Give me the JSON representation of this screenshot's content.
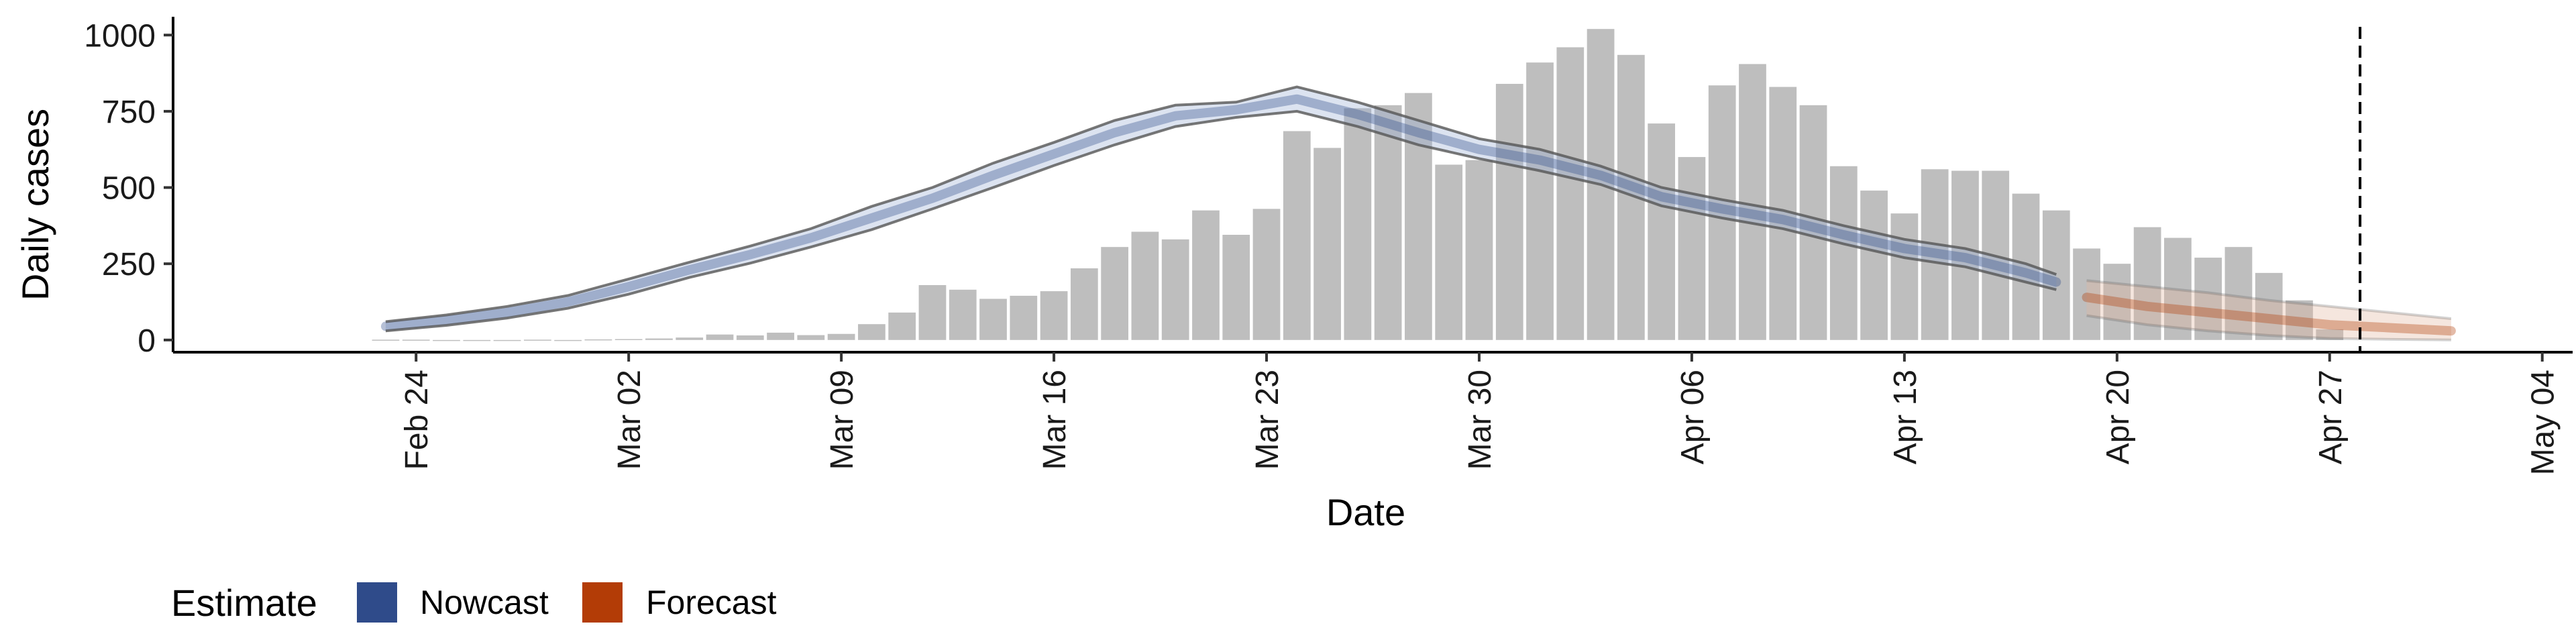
{
  "chart_data": {
    "type": "bar",
    "xlabel": "Date",
    "ylabel": "Daily cases",
    "ylim": [
      -40,
      1060
    ],
    "xlim": [
      "2020-02-16",
      "2020-05-05"
    ],
    "yticks": [
      0,
      250,
      500,
      750,
      1000
    ],
    "ytick_labels": [
      "0",
      "250",
      "500",
      "750",
      "1000"
    ],
    "xticks": [
      "2020-02-24",
      "2020-03-02",
      "2020-03-09",
      "2020-03-16",
      "2020-03-23",
      "2020-03-30",
      "2020-04-06",
      "2020-04-13",
      "2020-04-20",
      "2020-04-27",
      "2020-05-04"
    ],
    "xtick_labels": [
      "Feb 24",
      "Mar 02",
      "Mar 09",
      "Mar 16",
      "Mar 23",
      "Mar 30",
      "Apr 06",
      "Apr 13",
      "Apr 20",
      "Apr 27",
      "May 04"
    ],
    "grid": false,
    "bars": {
      "color": "#bebebe",
      "dates": [
        "2020-02-23",
        "2020-02-24",
        "2020-02-25",
        "2020-02-26",
        "2020-02-27",
        "2020-02-28",
        "2020-02-29",
        "2020-03-01",
        "2020-03-02",
        "2020-03-03",
        "2020-03-04",
        "2020-03-05",
        "2020-03-06",
        "2020-03-07",
        "2020-03-08",
        "2020-03-09",
        "2020-03-10",
        "2020-03-11",
        "2020-03-12",
        "2020-03-13",
        "2020-03-14",
        "2020-03-15",
        "2020-03-16",
        "2020-03-17",
        "2020-03-18",
        "2020-03-19",
        "2020-03-20",
        "2020-03-21",
        "2020-03-22",
        "2020-03-23",
        "2020-03-24",
        "2020-03-25",
        "2020-03-26",
        "2020-03-27",
        "2020-03-28",
        "2020-03-29",
        "2020-03-30",
        "2020-03-31",
        "2020-04-01",
        "2020-04-02",
        "2020-04-03",
        "2020-04-04",
        "2020-04-05",
        "2020-04-06",
        "2020-04-07",
        "2020-04-08",
        "2020-04-09",
        "2020-04-10",
        "2020-04-11",
        "2020-04-12",
        "2020-04-13",
        "2020-04-14",
        "2020-04-15",
        "2020-04-16",
        "2020-04-17",
        "2020-04-18",
        "2020-04-19",
        "2020-04-20",
        "2020-04-21",
        "2020-04-22",
        "2020-04-23",
        "2020-04-24",
        "2020-04-25",
        "2020-04-26",
        "2020-04-27"
      ],
      "values": [
        1,
        1,
        0,
        0,
        0,
        1,
        0,
        2,
        3,
        5,
        8,
        18,
        15,
        24,
        16,
        20,
        52,
        90,
        180,
        165,
        135,
        145,
        160,
        235,
        305,
        355,
        330,
        425,
        345,
        430,
        685,
        630,
        760,
        770,
        810,
        575,
        590,
        840,
        910,
        960,
        1020,
        935,
        710,
        600,
        835,
        905,
        830,
        770,
        570,
        490,
        415,
        560,
        555,
        555,
        480,
        425,
        300,
        250,
        370,
        335,
        270,
        305,
        220,
        130,
        35
      ]
    },
    "series": [
      {
        "name": "Nowcast",
        "color": "#2f4b8a",
        "dates": [
          "2020-02-23",
          "2020-02-25",
          "2020-02-27",
          "2020-02-29",
          "2020-03-02",
          "2020-03-04",
          "2020-03-06",
          "2020-03-08",
          "2020-03-10",
          "2020-03-12",
          "2020-03-14",
          "2020-03-16",
          "2020-03-18",
          "2020-03-20",
          "2020-03-22",
          "2020-03-24",
          "2020-03-26",
          "2020-03-28",
          "2020-03-30",
          "2020-04-01",
          "2020-04-03",
          "2020-04-05",
          "2020-04-07",
          "2020-04-09",
          "2020-04-11",
          "2020-04-13",
          "2020-04-15",
          "2020-04-17",
          "2020-04-18"
        ],
        "median": [
          45,
          65,
          90,
          125,
          175,
          230,
          280,
          335,
          400,
          465,
          540,
          610,
          680,
          735,
          755,
          790,
          740,
          680,
          625,
          590,
          540,
          470,
          430,
          395,
          345,
          300,
          270,
          220,
          190
        ],
        "lower_90": [
          30,
          48,
          72,
          104,
          150,
          205,
          252,
          305,
          362,
          430,
          500,
          572,
          640,
          700,
          730,
          750,
          700,
          640,
          595,
          555,
          510,
          440,
          400,
          365,
          315,
          270,
          240,
          190,
          165
        ],
        "upper_90": [
          60,
          82,
          110,
          146,
          200,
          255,
          308,
          365,
          438,
          500,
          580,
          648,
          720,
          770,
          780,
          830,
          780,
          720,
          660,
          625,
          570,
          500,
          460,
          425,
          375,
          330,
          300,
          250,
          215
        ]
      },
      {
        "name": "Forecast",
        "color": "#b33c06",
        "dates": [
          "2020-04-19",
          "2020-04-21",
          "2020-04-23",
          "2020-04-25",
          "2020-04-27",
          "2020-04-29",
          "2020-05-01"
        ],
        "median": [
          140,
          110,
          90,
          70,
          50,
          40,
          30
        ],
        "lower_90": [
          80,
          50,
          30,
          15,
          5,
          2,
          0
        ],
        "upper_90": [
          195,
          175,
          155,
          130,
          110,
          90,
          70
        ]
      }
    ],
    "annotations": [
      {
        "type": "vline",
        "x": "2020-04-28",
        "style": "dashed"
      }
    ],
    "legend": {
      "title": "Estimate",
      "position": "bottom-left",
      "items": [
        {
          "label": "Nowcast",
          "color": "#2f4b8a"
        },
        {
          "label": "Forecast",
          "color": "#b33c06"
        }
      ]
    }
  }
}
